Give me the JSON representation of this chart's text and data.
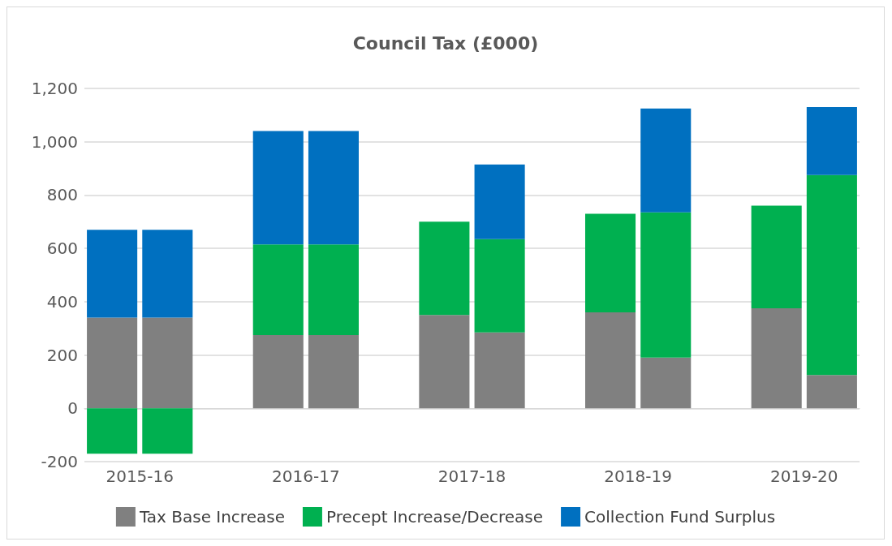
{
  "chart_data": {
    "type": "bar",
    "title": "Council Tax (£000)",
    "stacked": true,
    "categories": [
      "2015-16",
      null,
      null,
      "2016-17",
      null,
      null,
      "2017-18",
      null,
      null,
      "2018-19",
      null,
      null,
      "2019-20",
      null
    ],
    "series": [
      {
        "name": "Tax Base Increase",
        "color": "#808080",
        "values": [
          340,
          340,
          null,
          275,
          275,
          null,
          350,
          285,
          null,
          360,
          190,
          null,
          375,
          125
        ]
      },
      {
        "name": "Precept Increase/Decrease",
        "color": "#00b050",
        "values": [
          -170,
          -170,
          null,
          340,
          340,
          null,
          350,
          350,
          null,
          370,
          545,
          null,
          385,
          750
        ]
      },
      {
        "name": "Collection Fund Surplus",
        "color": "#0070c0",
        "values": [
          330,
          330,
          null,
          425,
          425,
          null,
          null,
          280,
          null,
          null,
          390,
          null,
          null,
          255
        ]
      }
    ],
    "ylim": [
      -200,
      1200
    ],
    "yticks": [
      -200,
      0,
      200,
      400,
      600,
      800,
      {
        "value": 1000,
        "label": "1,000"
      },
      {
        "value": 1200,
        "label": "1,200"
      }
    ],
    "grid": "y",
    "legend": "bottom"
  }
}
